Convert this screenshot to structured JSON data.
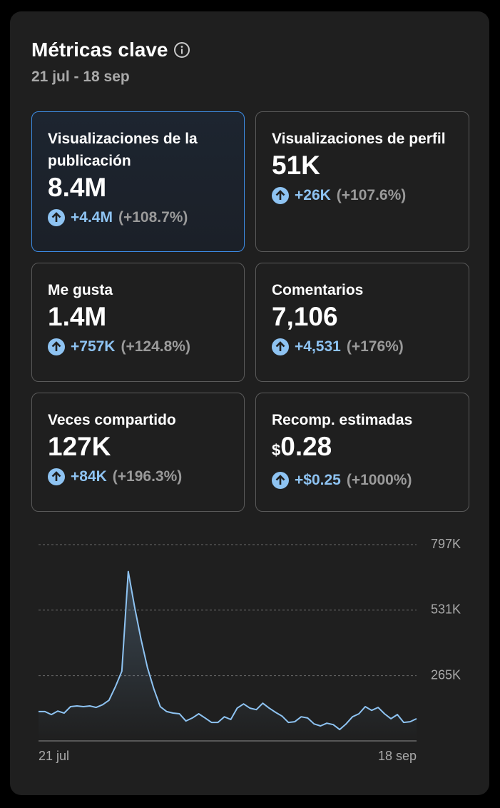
{
  "header": {
    "title": "Métricas clave",
    "date_range": "21 jul - 18 sep"
  },
  "cards": [
    {
      "label": "Visualizaciones de la publicación",
      "value": "8.4M",
      "delta": "+4.4M",
      "percent": "(+108.7%)",
      "selected": true
    },
    {
      "label": "Visualizaciones de perfil",
      "value": "51K",
      "delta": "+26K",
      "percent": "(+107.6%)"
    },
    {
      "label": "Me gusta",
      "value": "1.4M",
      "delta": "+757K",
      "percent": "(+124.8%)"
    },
    {
      "label": "Comentarios",
      "value": "7,106",
      "delta": "+4,531",
      "percent": "(+176%)"
    },
    {
      "label": "Veces compartido",
      "value": "127K",
      "delta": "+84K",
      "percent": "(+196.3%)"
    },
    {
      "label": "Recomp. estimadas",
      "currency": "$",
      "value": "0.28",
      "delta": "+$0.25",
      "percent": "(+1000%)"
    }
  ],
  "chart_data": {
    "type": "line",
    "color": "#8ec3f2",
    "grid": true,
    "categories": [
      "21 jul",
      null,
      null,
      null,
      null,
      null,
      null,
      null,
      null,
      null,
      null,
      null,
      null,
      null,
      null,
      null,
      null,
      null,
      null,
      null,
      null,
      null,
      null,
      null,
      null,
      null,
      null,
      null,
      null,
      null,
      null,
      null,
      null,
      null,
      null,
      null,
      null,
      null,
      null,
      null,
      null,
      null,
      null,
      null,
      null,
      null,
      null,
      null,
      null,
      null,
      null,
      null,
      null,
      null,
      null,
      null,
      null,
      null,
      null,
      "18 sep"
    ],
    "values": [
      119000,
      119000,
      107000,
      121000,
      113000,
      139000,
      142000,
      139000,
      142000,
      136000,
      147000,
      165000,
      220000,
      283000,
      688000,
      544000,
      413000,
      298000,
      211000,
      139000,
      119000,
      113000,
      110000,
      81000,
      93000,
      110000,
      93000,
      75000,
      75000,
      98000,
      87000,
      133000,
      150000,
      133000,
      127000,
      153000,
      133000,
      116000,
      101000,
      75000,
      78000,
      98000,
      93000,
      69000,
      61000,
      72000,
      66000,
      46000,
      69000,
      98000,
      110000,
      139000,
      124000,
      136000,
      110000,
      90000,
      107000,
      75000,
      78000,
      90000
    ],
    "ylim": [
      0,
      797000
    ],
    "yticks": [
      {
        "value": 265000,
        "label": "265K"
      },
      {
        "value": 531000,
        "label": "531K"
      },
      {
        "value": 797000,
        "label": "797K"
      }
    ]
  }
}
